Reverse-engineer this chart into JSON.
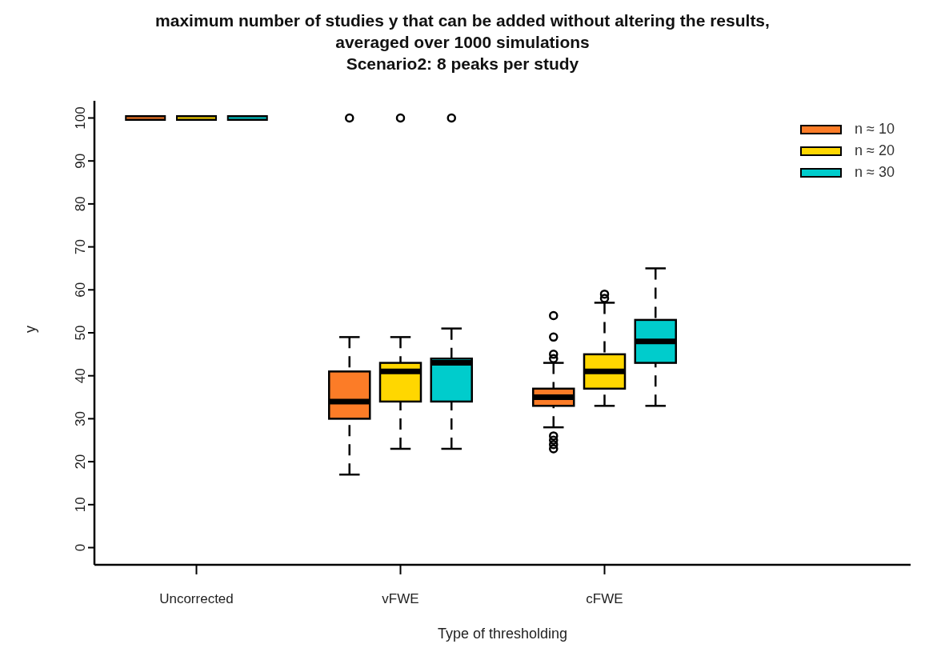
{
  "chart_data": {
    "type": "box",
    "title": "maximum number of studies y that can be added without altering the results, averaged over 1000 simulations",
    "subtitle": "Scenario2: 8 peaks per study",
    "xlabel": "Type of thresholding",
    "ylabel": "y",
    "categories": [
      "Uncorrected",
      "vFWE",
      "cFWE",
      null
    ],
    "ylim": [
      -4,
      104
    ],
    "yticks": [
      0,
      10,
      20,
      30,
      40,
      50,
      60,
      70,
      80,
      90,
      100
    ],
    "grid": false,
    "legend": "top right",
    "series": [
      {
        "name": "n ≈ 10",
        "color": "#fc7c27",
        "boxes": [
          {
            "low": 100,
            "q1": 100,
            "median": 100,
            "q3": 100,
            "high": 100
          },
          {
            "low": 17,
            "q1": 30,
            "median": 34,
            "q3": 41,
            "high": 49,
            "outliers": [
              100
            ]
          },
          {
            "low": 28,
            "q1": 33,
            "median": 35,
            "q3": 37,
            "high": 43,
            "outliers": [
              23,
              24,
              25,
              26,
              44,
              45,
              49,
              54
            ]
          },
          null
        ]
      },
      {
        "name": "n ≈ 20",
        "color": "#ffd700",
        "boxes": [
          {
            "low": 100,
            "q1": 100,
            "median": 100,
            "q3": 100,
            "high": 100
          },
          {
            "low": 23,
            "q1": 34,
            "median": 41,
            "q3": 43,
            "high": 49,
            "outliers": [
              100
            ]
          },
          {
            "low": 33,
            "q1": 37,
            "median": 41,
            "q3": 45,
            "high": 57,
            "outliers": [
              58,
              59
            ]
          },
          null
        ]
      },
      {
        "name": "n ≈ 30",
        "color": "#00cccc",
        "boxes": [
          {
            "low": 100,
            "q1": 100,
            "median": 100,
            "q3": 100,
            "high": 100
          },
          {
            "low": 23,
            "q1": 34,
            "median": 43,
            "q3": 44,
            "high": 51,
            "outliers": [
              100
            ]
          },
          {
            "low": 33,
            "q1": 43,
            "median": 48,
            "q3": 53,
            "high": 65
          },
          null
        ]
      }
    ]
  }
}
